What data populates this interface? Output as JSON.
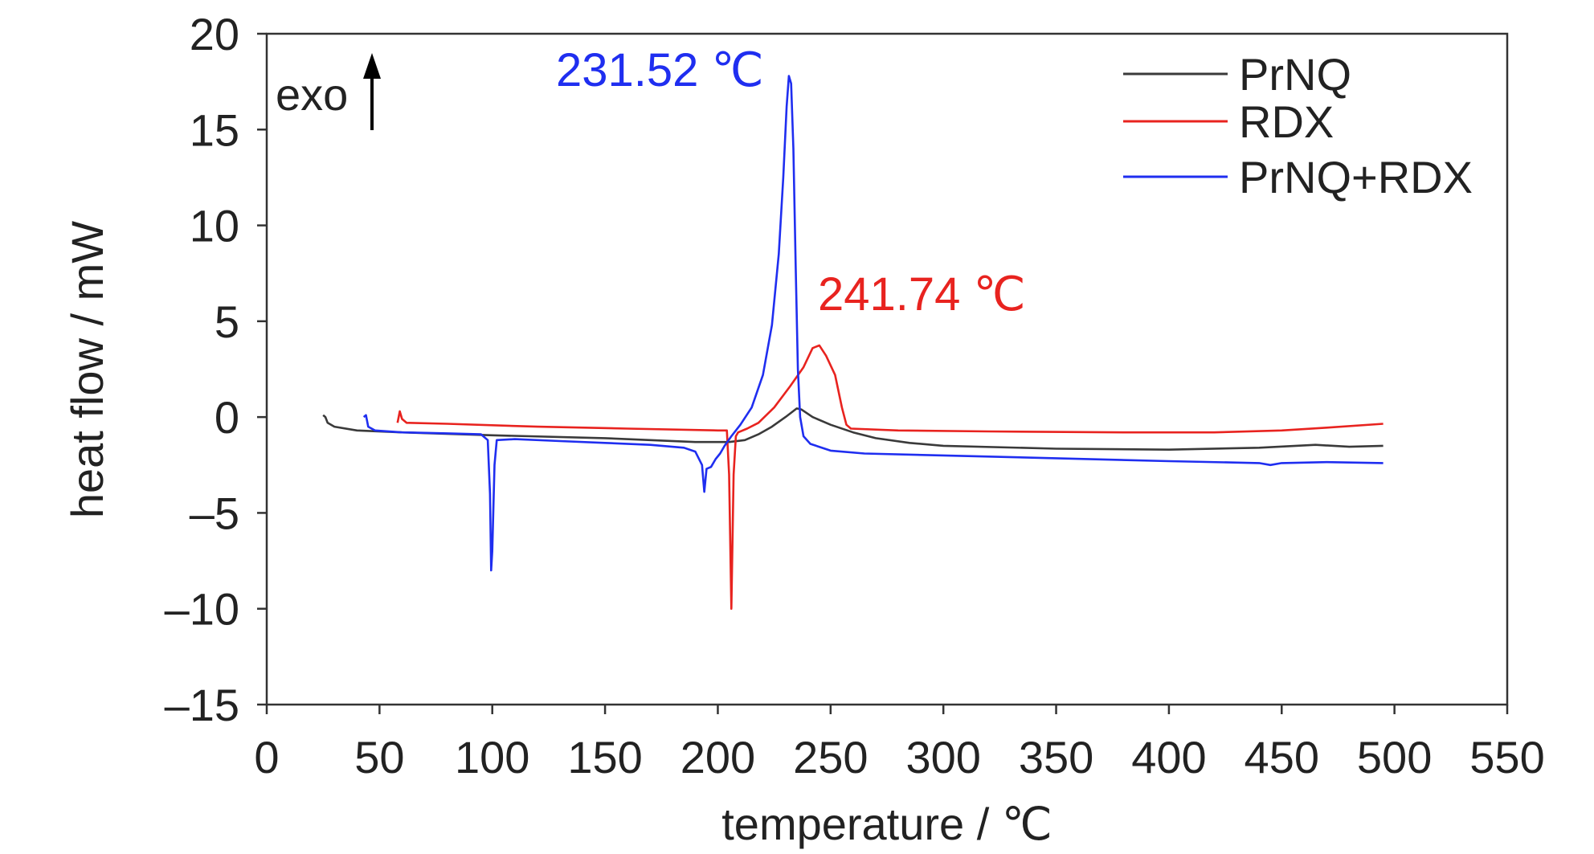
{
  "chart_data": {
    "type": "line",
    "title": "",
    "xlabel": "temperature / ℃",
    "ylabel": "heat flow / mW",
    "xlim": [
      0,
      550
    ],
    "ylim": [
      -15,
      20
    ],
    "x_ticks": [
      0,
      50,
      100,
      150,
      200,
      250,
      300,
      350,
      400,
      450,
      500,
      550
    ],
    "y_ticks": [
      20,
      15,
      10,
      5,
      0,
      -5,
      -10,
      -15
    ],
    "x_tick_labels": [
      "0",
      "50",
      "100",
      "150",
      "200",
      "250",
      "300",
      "350",
      "400",
      "450",
      "500",
      "550"
    ],
    "y_tick_labels": [
      "20",
      "15",
      "10",
      "5",
      "0",
      "–5",
      "–10",
      "–15"
    ],
    "grid": false,
    "legend": "top-right",
    "exo_label": "exo",
    "series": [
      {
        "name": "PrNQ",
        "color": "#3a3a3a",
        "points": [
          [
            25,
            0.1
          ],
          [
            26,
            0.0
          ],
          [
            27,
            -0.3
          ],
          [
            30,
            -0.5
          ],
          [
            40,
            -0.7
          ],
          [
            60,
            -0.8
          ],
          [
            100,
            -0.95
          ],
          [
            150,
            -1.1
          ],
          [
            190,
            -1.3
          ],
          [
            205,
            -1.3
          ],
          [
            212,
            -1.2
          ],
          [
            218,
            -0.9
          ],
          [
            224,
            -0.5
          ],
          [
            230,
            0.0
          ],
          [
            235,
            0.45
          ],
          [
            237,
            0.4
          ],
          [
            242,
            0.0
          ],
          [
            250,
            -0.4
          ],
          [
            260,
            -0.8
          ],
          [
            270,
            -1.1
          ],
          [
            285,
            -1.35
          ],
          [
            300,
            -1.5
          ],
          [
            350,
            -1.65
          ],
          [
            400,
            -1.7
          ],
          [
            440,
            -1.6
          ],
          [
            465,
            -1.45
          ],
          [
            480,
            -1.55
          ],
          [
            495,
            -1.5
          ]
        ]
      },
      {
        "name": "RDX",
        "color": "#e8231f",
        "points": [
          [
            58,
            -0.3
          ],
          [
            59,
            0.3
          ],
          [
            60,
            -0.1
          ],
          [
            62,
            -0.3
          ],
          [
            80,
            -0.35
          ],
          [
            120,
            -0.5
          ],
          [
            160,
            -0.6
          ],
          [
            200,
            -0.7
          ],
          [
            204,
            -0.7
          ],
          [
            205,
            -3
          ],
          [
            206,
            -10
          ],
          [
            207,
            -3
          ],
          [
            208,
            -1.0
          ],
          [
            209,
            -0.8
          ],
          [
            213,
            -0.6
          ],
          [
            218,
            -0.3
          ],
          [
            225,
            0.5
          ],
          [
            232,
            1.6
          ],
          [
            238,
            2.6
          ],
          [
            242,
            3.6
          ],
          [
            245,
            3.74
          ],
          [
            248,
            3.2
          ],
          [
            252,
            2.2
          ],
          [
            255,
            0.5
          ],
          [
            257,
            -0.4
          ],
          [
            259,
            -0.6
          ],
          [
            280,
            -0.7
          ],
          [
            320,
            -0.75
          ],
          [
            380,
            -0.8
          ],
          [
            420,
            -0.8
          ],
          [
            450,
            -0.7
          ],
          [
            470,
            -0.55
          ],
          [
            495,
            -0.35
          ]
        ]
      },
      {
        "name": "PrNQ+RDX",
        "color": "#1f2ef0",
        "points": [
          [
            43,
            0.0
          ],
          [
            44,
            0.1
          ],
          [
            45,
            -0.5
          ],
          [
            48,
            -0.7
          ],
          [
            60,
            -0.8
          ],
          [
            80,
            -0.85
          ],
          [
            95,
            -0.9
          ],
          [
            98,
            -1.2
          ],
          [
            99,
            -4
          ],
          [
            99.5,
            -8
          ],
          [
            100,
            -7
          ],
          [
            101,
            -2.5
          ],
          [
            102,
            -1.2
          ],
          [
            110,
            -1.15
          ],
          [
            130,
            -1.25
          ],
          [
            150,
            -1.35
          ],
          [
            170,
            -1.45
          ],
          [
            185,
            -1.6
          ],
          [
            190,
            -1.8
          ],
          [
            193,
            -2.5
          ],
          [
            194,
            -3.9
          ],
          [
            195,
            -2.7
          ],
          [
            197,
            -2.6
          ],
          [
            199,
            -2.2
          ],
          [
            201,
            -1.9
          ],
          [
            203,
            -1.5
          ],
          [
            206,
            -1.0
          ],
          [
            210,
            -0.4
          ],
          [
            215,
            0.5
          ],
          [
            220,
            2.2
          ],
          [
            224,
            4.8
          ],
          [
            227,
            8.5
          ],
          [
            229,
            12.5
          ],
          [
            230.5,
            16.2
          ],
          [
            231.5,
            17.8
          ],
          [
            232.5,
            17.4
          ],
          [
            233.5,
            14
          ],
          [
            234.5,
            8
          ],
          [
            235.5,
            2.5
          ],
          [
            236.5,
            0
          ],
          [
            238,
            -1.0
          ],
          [
            241,
            -1.4
          ],
          [
            250,
            -1.75
          ],
          [
            265,
            -1.9
          ],
          [
            300,
            -2.0
          ],
          [
            350,
            -2.15
          ],
          [
            400,
            -2.3
          ],
          [
            440,
            -2.4
          ],
          [
            445,
            -2.5
          ],
          [
            450,
            -2.4
          ],
          [
            470,
            -2.35
          ],
          [
            495,
            -2.4
          ]
        ]
      }
    ],
    "annotations": [
      {
        "text": "231.52 ℃",
        "color": "#1f2ef0"
      },
      {
        "text": "241.74 ℃",
        "color": "#e8231f"
      }
    ]
  }
}
